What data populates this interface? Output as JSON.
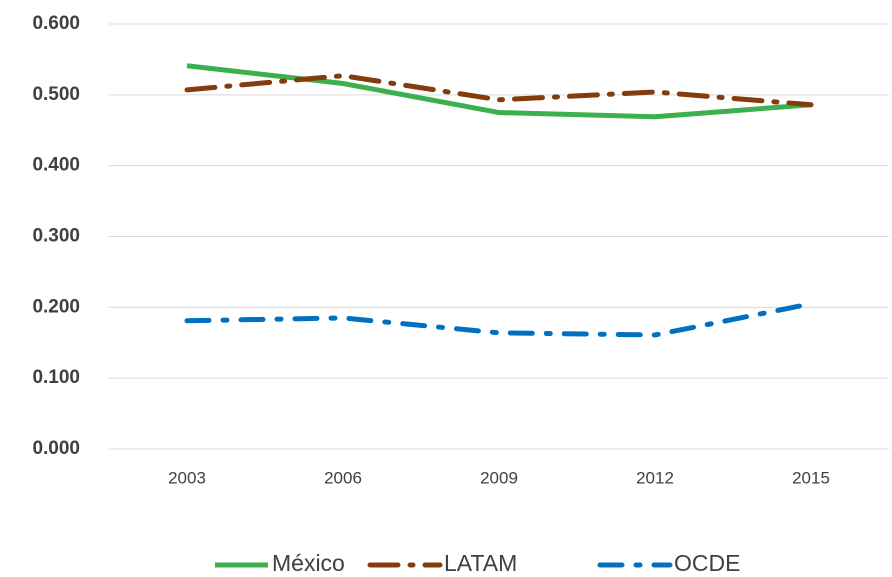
{
  "chart_data": {
    "type": "line",
    "categories": [
      "2003",
      "2006",
      "2009",
      "2012",
      "2015"
    ],
    "series": [
      {
        "name": "México",
        "color": "#3cb04e",
        "values": [
          0.541,
          0.516,
          0.475,
          0.469,
          0.486
        ]
      },
      {
        "name": "LATAM",
        "color": "#843c0c",
        "values": [
          0.507,
          0.527,
          0.493,
          0.504,
          0.486
        ]
      },
      {
        "name": "OCDE",
        "color": "#0070c0",
        "values": [
          0.181,
          0.185,
          0.164,
          0.161,
          0.205
        ]
      }
    ],
    "ylim": [
      0,
      0.6
    ],
    "yticks": [
      {
        "value": 0,
        "label": "0.000"
      },
      {
        "value": 0.1,
        "label": "0.100"
      },
      {
        "value": 0.2,
        "label": "0.200"
      },
      {
        "value": 0.3,
        "label": "0.300"
      },
      {
        "value": 0.4,
        "label": "0.400"
      },
      {
        "value": 0.5,
        "label": "0.500"
      },
      {
        "value": 0.6,
        "label": "0.600"
      }
    ],
    "grid": true,
    "legend": "bottom"
  }
}
